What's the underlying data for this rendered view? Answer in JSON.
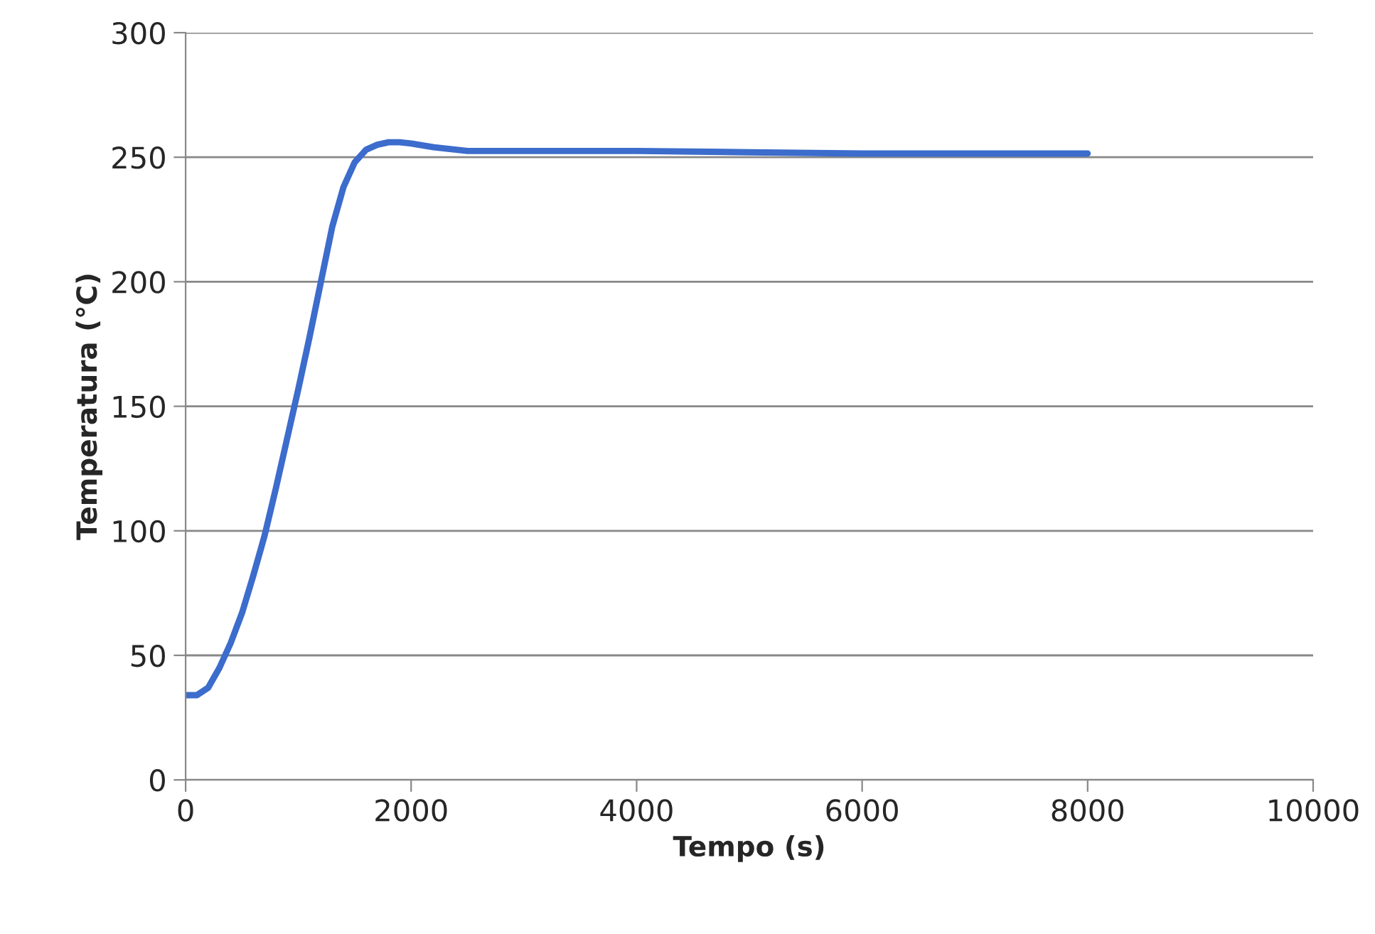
{
  "chart_data": {
    "type": "line",
    "xlabel": "Tempo (s)",
    "ylabel": "Temperatura (°C)",
    "x": [
      0,
      100,
      200,
      300,
      400,
      500,
      600,
      700,
      800,
      900,
      1000,
      1100,
      1200,
      1300,
      1400,
      1500,
      1600,
      1700,
      1800,
      1900,
      2000,
      2200,
      2500,
      3000,
      4000,
      5000,
      6000,
      7000,
      8000
    ],
    "series": [
      {
        "color": "#3c6ccc",
        "values": [
          34,
          34,
          37,
          45,
          55,
          67,
          82,
          98,
          117,
          137,
          157,
          178,
          200,
          222,
          238,
          248,
          253,
          255,
          256,
          256,
          255.5,
          254,
          252.5,
          252.5,
          252.5,
          252,
          251.5,
          251.5,
          251.5
        ]
      }
    ],
    "xlim": [
      0,
      10000
    ],
    "xticks": [
      0,
      2000,
      4000,
      6000,
      8000,
      10000
    ],
    "ylim": [
      0,
      300
    ],
    "yticks": [
      0,
      50,
      100,
      150,
      200,
      250,
      300
    ],
    "grid": "y",
    "legend": false,
    "marker": "none",
    "line_style": "solid"
  }
}
